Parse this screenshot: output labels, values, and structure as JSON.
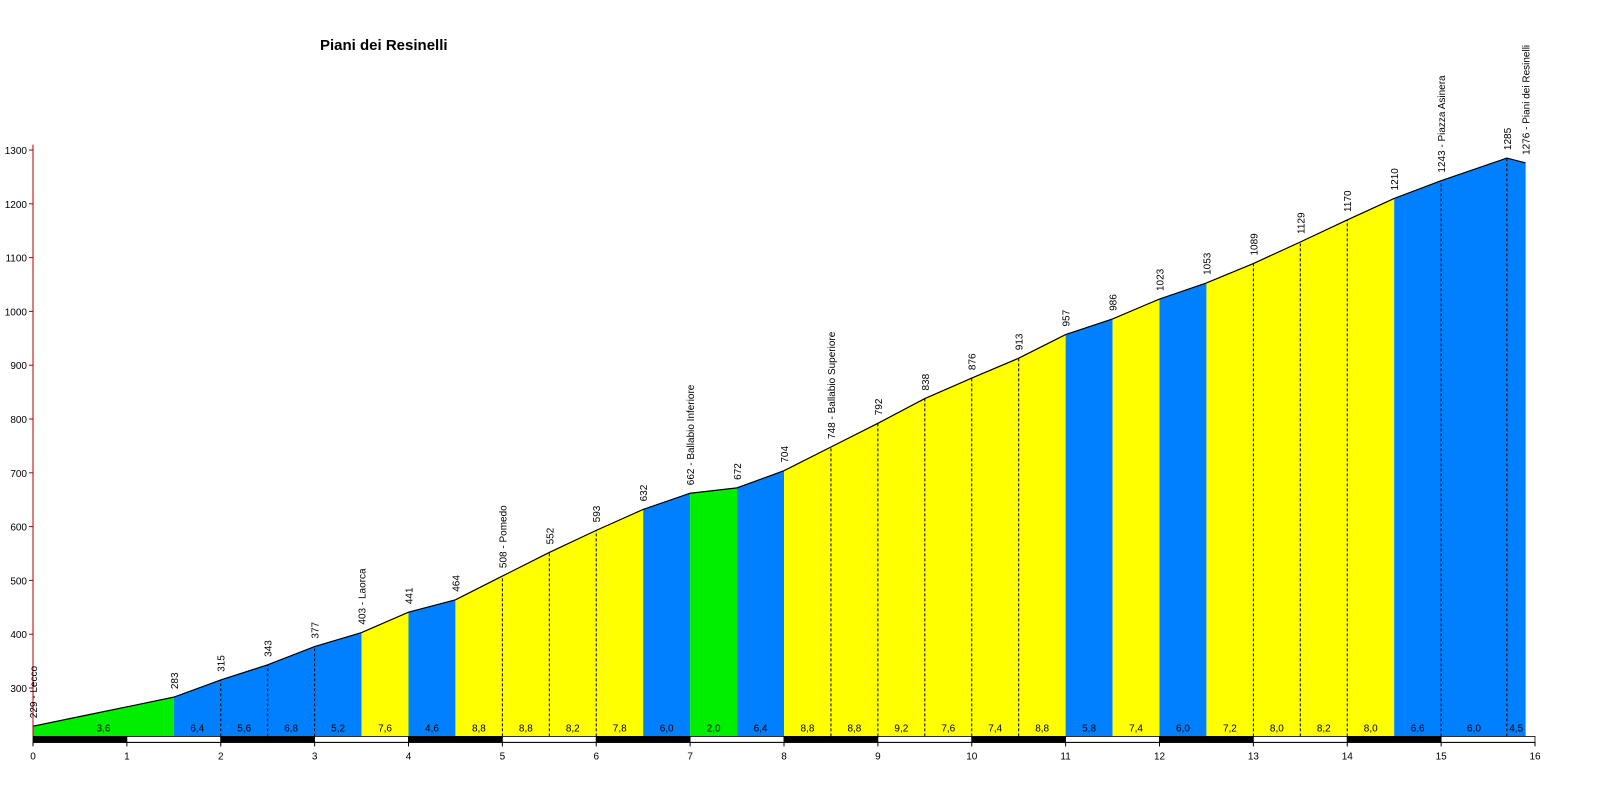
{
  "chart_data": {
    "type": "area",
    "title": "Piani dei Resinelli",
    "xlabel": "",
    "ylabel": "",
    "xlim": [
      0,
      16
    ],
    "ylim": [
      210,
      1310
    ],
    "x_ticks": [
      0,
      1,
      2,
      3,
      4,
      5,
      6,
      7,
      8,
      9,
      10,
      11,
      12,
      13,
      14,
      15,
      16
    ],
    "y_ticks": [
      300,
      400,
      500,
      600,
      700,
      800,
      900,
      1000,
      1100,
      1200,
      1300
    ],
    "colors": {
      "green": "#00ee00",
      "blue": "#0080ff",
      "yellow": "#ffff00"
    },
    "points": [
      {
        "km": 0,
        "alt": 229,
        "label": "229 - Lecco"
      },
      {
        "km": 0.5,
        "alt": 247
      },
      {
        "km": 1.0,
        "alt": 265
      },
      {
        "km": 1.5,
        "alt": 283,
        "label": "283"
      },
      {
        "km": 2.0,
        "alt": 315,
        "label": "315"
      },
      {
        "km": 2.5,
        "alt": 343,
        "label": "343"
      },
      {
        "km": 3.0,
        "alt": 377,
        "label": "377"
      },
      {
        "km": 3.5,
        "alt": 403,
        "label": "403 - Laorca"
      },
      {
        "km": 4.0,
        "alt": 441,
        "label": "441"
      },
      {
        "km": 4.5,
        "alt": 464,
        "label": "464"
      },
      {
        "km": 5.0,
        "alt": 508,
        "label": "508 - Pomedo"
      },
      {
        "km": 5.5,
        "alt": 552,
        "label": "552"
      },
      {
        "km": 6.0,
        "alt": 593,
        "label": "593"
      },
      {
        "km": 6.5,
        "alt": 632,
        "label": "632"
      },
      {
        "km": 7.0,
        "alt": 662,
        "label": "662 - Ballabio Inferiore"
      },
      {
        "km": 7.5,
        "alt": 672,
        "label": "672"
      },
      {
        "km": 8.0,
        "alt": 704,
        "label": "704"
      },
      {
        "km": 8.5,
        "alt": 748,
        "label": "748 - Ballabio Superiore"
      },
      {
        "km": 9.0,
        "alt": 792,
        "label": "792"
      },
      {
        "km": 9.5,
        "alt": 838,
        "label": "838"
      },
      {
        "km": 10.0,
        "alt": 876,
        "label": "876"
      },
      {
        "km": 10.5,
        "alt": 913,
        "label": "913"
      },
      {
        "km": 11.0,
        "alt": 957,
        "label": "957"
      },
      {
        "km": 11.5,
        "alt": 986,
        "label": "986"
      },
      {
        "km": 12.0,
        "alt": 1023,
        "label": "1023"
      },
      {
        "km": 12.5,
        "alt": 1053,
        "label": "1053"
      },
      {
        "km": 13.0,
        "alt": 1089,
        "label": "1089"
      },
      {
        "km": 13.5,
        "alt": 1129,
        "label": "1129"
      },
      {
        "km": 14.0,
        "alt": 1170,
        "label": "1170"
      },
      {
        "km": 14.5,
        "alt": 1210,
        "label": "1210"
      },
      {
        "km": 15.0,
        "alt": 1243,
        "label": "1243 - Piazza Asinera"
      },
      {
        "km": 15.7,
        "alt": 1285,
        "label": "1285"
      },
      {
        "km": 15.9,
        "alt": 1276,
        "label": "1276 - Piani dei Resinelli"
      }
    ],
    "segments": [
      {
        "from": 0,
        "to": 1.5,
        "gradient": "3,6",
        "color": "green"
      },
      {
        "from": 1.5,
        "to": 2.0,
        "gradient": "6,4",
        "color": "blue"
      },
      {
        "from": 2.0,
        "to": 2.5,
        "gradient": "5,6",
        "color": "blue"
      },
      {
        "from": 2.5,
        "to": 3.0,
        "gradient": "6,8",
        "color": "blue"
      },
      {
        "from": 3.0,
        "to": 3.5,
        "gradient": "5,2",
        "color": "blue"
      },
      {
        "from": 3.5,
        "to": 4.0,
        "gradient": "7,6",
        "color": "yellow"
      },
      {
        "from": 4.0,
        "to": 4.5,
        "gradient": "4,6",
        "color": "blue"
      },
      {
        "from": 4.5,
        "to": 5.0,
        "gradient": "8,8",
        "color": "yellow"
      },
      {
        "from": 5.0,
        "to": 5.5,
        "gradient": "8,8",
        "color": "yellow"
      },
      {
        "from": 5.5,
        "to": 6.0,
        "gradient": "8,2",
        "color": "yellow"
      },
      {
        "from": 6.0,
        "to": 6.5,
        "gradient": "7,8",
        "color": "yellow"
      },
      {
        "from": 6.5,
        "to": 7.0,
        "gradient": "6,0",
        "color": "blue"
      },
      {
        "from": 7.0,
        "to": 7.5,
        "gradient": "2,0",
        "color": "green"
      },
      {
        "from": 7.5,
        "to": 8.0,
        "gradient": "6,4",
        "color": "blue"
      },
      {
        "from": 8.0,
        "to": 8.5,
        "gradient": "8,8",
        "color": "yellow"
      },
      {
        "from": 8.5,
        "to": 9.0,
        "gradient": "8,8",
        "color": "yellow"
      },
      {
        "from": 9.0,
        "to": 9.5,
        "gradient": "9,2",
        "color": "yellow"
      },
      {
        "from": 9.5,
        "to": 10.0,
        "gradient": "7,6",
        "color": "yellow"
      },
      {
        "from": 10.0,
        "to": 10.5,
        "gradient": "7,4",
        "color": "yellow"
      },
      {
        "from": 10.5,
        "to": 11.0,
        "gradient": "8,8",
        "color": "yellow"
      },
      {
        "from": 11.0,
        "to": 11.5,
        "gradient": "5,8",
        "color": "blue"
      },
      {
        "from": 11.5,
        "to": 12.0,
        "gradient": "7,4",
        "color": "yellow"
      },
      {
        "from": 12.0,
        "to": 12.5,
        "gradient": "6,0",
        "color": "blue"
      },
      {
        "from": 12.5,
        "to": 13.0,
        "gradient": "7,2",
        "color": "yellow"
      },
      {
        "from": 13.0,
        "to": 13.5,
        "gradient": "8,0",
        "color": "yellow"
      },
      {
        "from": 13.5,
        "to": 14.0,
        "gradient": "8,2",
        "color": "yellow"
      },
      {
        "from": 14.0,
        "to": 14.5,
        "gradient": "8,0",
        "color": "yellow"
      },
      {
        "from": 14.5,
        "to": 15.0,
        "gradient": "6,6",
        "color": "blue"
      },
      {
        "from": 15.0,
        "to": 15.7,
        "gradient": "6,0",
        "color": "blue"
      },
      {
        "from": 15.7,
        "to": 15.9,
        "gradient": "4,5",
        "color": "blue"
      }
    ]
  }
}
